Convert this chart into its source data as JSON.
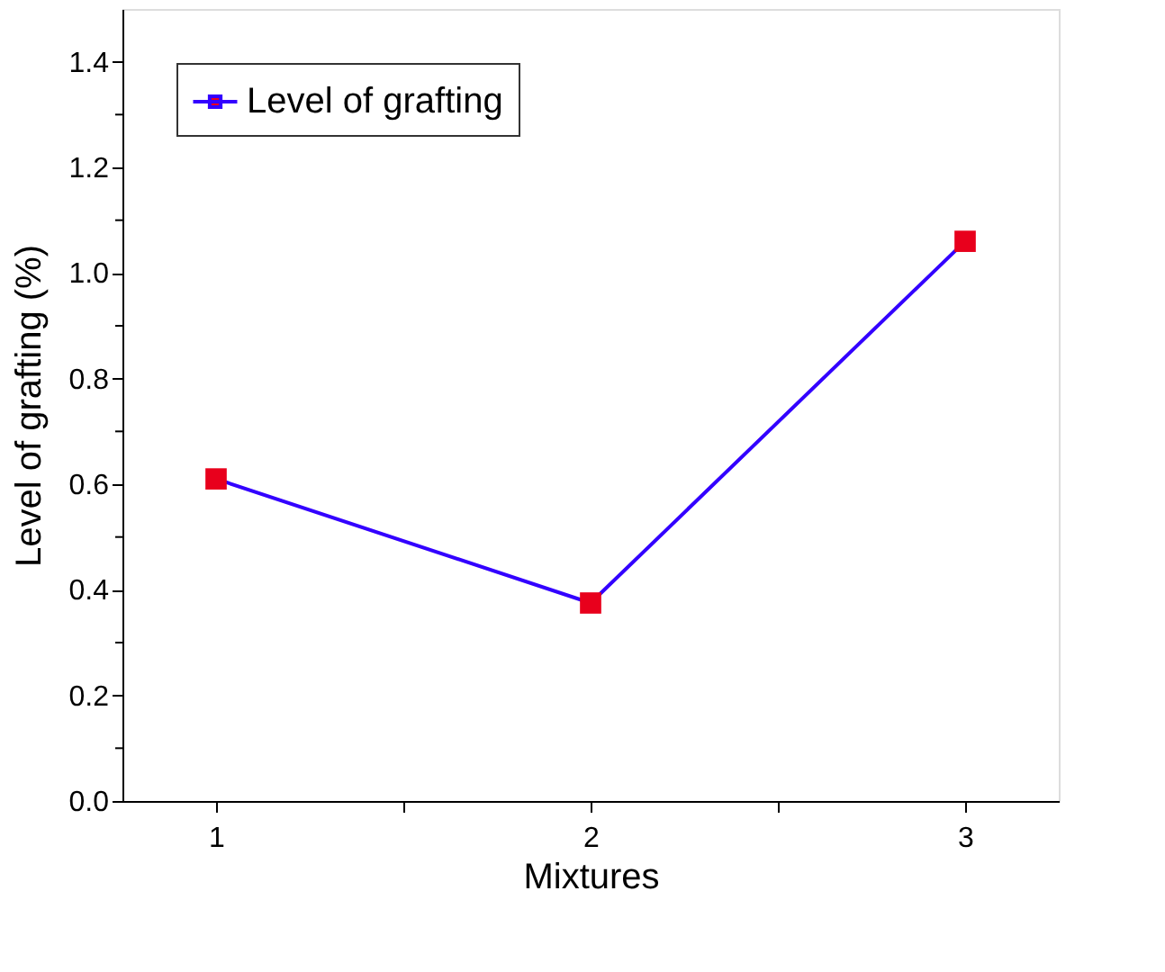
{
  "chart_data": {
    "type": "line",
    "xlabel": "Mixtures",
    "ylabel": "Level of grafting (%)",
    "x": [
      1,
      2,
      3
    ],
    "series": [
      {
        "name": "Level of grafting",
        "color": "#3300ff",
        "colors": [
          "#e8001c",
          "#e8001c",
          "#e8001c"
        ],
        "values": [
          0.61,
          0.375,
          1.06
        ]
      }
    ],
    "xlim": [
      0.75,
      3.25
    ],
    "xticks": [
      1,
      {
        "value": 1.5,
        "label": null
      },
      2,
      {
        "value": 2.5,
        "label": null
      },
      3
    ],
    "ylim": [
      0,
      1.5
    ],
    "yticks": [
      {
        "value": 0,
        "label": "0.0"
      },
      {
        "value": 0.1,
        "label": null
      },
      {
        "value": 0.2,
        "label": "0.2"
      },
      {
        "value": 0.3,
        "label": null
      },
      {
        "value": 0.4,
        "label": "0.4"
      },
      {
        "value": 0.5,
        "label": null
      },
      {
        "value": 0.6,
        "label": "0.6"
      },
      {
        "value": 0.7,
        "label": null
      },
      {
        "value": 0.8,
        "label": "0.8"
      },
      {
        "value": 0.9,
        "label": null
      },
      {
        "value": 1,
        "label": "1.0"
      },
      {
        "value": 1.1,
        "label": null
      },
      {
        "value": 1.2,
        "label": "1.2"
      },
      {
        "value": 1.3,
        "label": null
      },
      {
        "value": 1.4,
        "label": "1.4"
      }
    ],
    "marker": "square",
    "line_style": "solid",
    "legend": "top left",
    "grid": false
  }
}
